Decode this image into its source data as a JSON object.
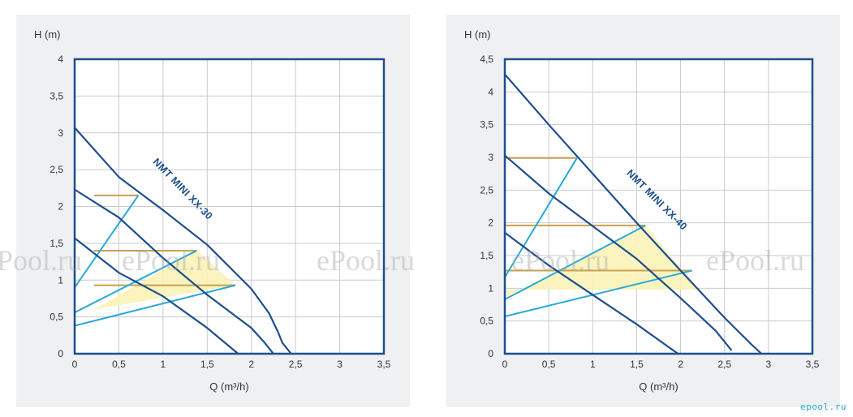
{
  "chart_data": [
    {
      "type": "line",
      "title": "",
      "xlabel": "Q (m³/h)",
      "ylabel": "H (m)",
      "xlim": [
        0,
        3.5
      ],
      "ylim": [
        0,
        4
      ],
      "xticks": [
        0,
        0.5,
        1,
        1.5,
        2,
        2.5,
        3,
        3.5
      ],
      "yticks": [
        0,
        0.5,
        1,
        1.5,
        2,
        2.5,
        3,
        3.5,
        4
      ],
      "xtick_labels": [
        "0",
        "0,5",
        "1",
        "1,5",
        "2",
        "2,5",
        "3",
        "3,5"
      ],
      "ytick_labels": [
        "0",
        "0,5",
        "1",
        "1,5",
        "2",
        "2,5",
        "3",
        "3,5",
        "4"
      ],
      "annotation": "NMT MINI XX-30",
      "colors": {
        "curve": "#1d4f8c",
        "system": "#29a9d8",
        "level": "#c9a050",
        "zone": "#fbf3b8",
        "frame": "#1d4f8c",
        "grid": "#c8cbcd"
      },
      "pump_curves": [
        {
          "x": [
            0,
            0.5,
            1,
            1.5,
            2,
            2.2,
            2.3,
            2.35,
            2.45
          ],
          "y": [
            3.07,
            2.4,
            1.95,
            1.48,
            0.88,
            0.55,
            0.3,
            0.15,
            0
          ]
        },
        {
          "x": [
            0,
            0.5,
            1,
            1.5,
            2,
            2.15,
            2.25
          ],
          "y": [
            2.23,
            1.85,
            1.3,
            0.8,
            0.35,
            0.15,
            0
          ]
        },
        {
          "x": [
            0,
            0.5,
            1,
            1.5,
            1.85
          ],
          "y": [
            1.57,
            1.1,
            0.78,
            0.35,
            0
          ]
        }
      ],
      "system_curves": [
        {
          "x": [
            0,
            0.72
          ],
          "y": [
            0.9,
            2.15
          ]
        },
        {
          "x": [
            0,
            1.38
          ],
          "y": [
            0.56,
            1.4
          ]
        },
        {
          "x": [
            0,
            1.82
          ],
          "y": [
            0.38,
            0.93
          ]
        }
      ],
      "level_lines": [
        {
          "x": [
            0.22,
            0.72
          ],
          "y": [
            2.15,
            2.15
          ]
        },
        {
          "x": [
            0.22,
            1.38
          ],
          "y": [
            1.4,
            1.4
          ]
        },
        {
          "x": [
            0.22,
            1.82
          ],
          "y": [
            0.93,
            0.93
          ]
        }
      ],
      "operating_zone": {
        "x": [
          0.22,
          1.38,
          1.82,
          0.22
        ],
        "y": [
          0.6,
          1.4,
          0.93,
          0.6
        ]
      }
    },
    {
      "type": "line",
      "title": "",
      "xlabel": "Q (m³/h)",
      "ylabel": "H (m)",
      "xlim": [
        0,
        3.5
      ],
      "ylim": [
        0,
        4.5
      ],
      "xticks": [
        0,
        0.5,
        1,
        1.5,
        2,
        2.5,
        3,
        3.5
      ],
      "yticks": [
        0,
        0.5,
        1,
        1.5,
        2,
        2.5,
        3,
        3.5,
        4,
        4.5
      ],
      "xtick_labels": [
        "0",
        "0,5",
        "1",
        "1,5",
        "2",
        "2,5",
        "3",
        "3,5"
      ],
      "ytick_labels": [
        "0",
        "0,5",
        "1",
        "1,5",
        "2",
        "2,5",
        "3",
        "3,5",
        "4",
        "4,5"
      ],
      "annotation": "NMT MINI XX-40",
      "colors": {
        "curve": "#1d4f8c",
        "system": "#29a9d8",
        "level": "#c9a050",
        "zone": "#fbf3b8",
        "frame": "#1d4f8c",
        "grid": "#c8cbcd"
      },
      "pump_curves": [
        {
          "x": [
            0,
            0.5,
            1,
            1.5,
            2,
            2.5,
            2.8,
            2.92
          ],
          "y": [
            4.27,
            3.5,
            2.75,
            2.0,
            1.27,
            0.55,
            0.15,
            0
          ]
        },
        {
          "x": [
            0,
            0.5,
            1,
            1.5,
            2,
            2.4,
            2.58
          ],
          "y": [
            3.03,
            2.45,
            1.95,
            1.45,
            0.85,
            0.35,
            0.05
          ]
        },
        {
          "x": [
            0,
            0.5,
            1,
            1.5,
            1.97
          ],
          "y": [
            1.85,
            1.35,
            0.9,
            0.45,
            0
          ]
        }
      ],
      "system_curves": [
        {
          "x": [
            0,
            0.82
          ],
          "y": [
            1.17,
            2.99
          ]
        },
        {
          "x": [
            0,
            1.6
          ],
          "y": [
            0.83,
            1.96
          ]
        },
        {
          "x": [
            0,
            2.13
          ],
          "y": [
            0.57,
            1.27
          ]
        }
      ],
      "level_lines": [
        {
          "x": [
            0,
            0.82
          ],
          "y": [
            2.99,
            2.99
          ]
        },
        {
          "x": [
            0,
            1.6
          ],
          "y": [
            1.96,
            1.96
          ]
        },
        {
          "x": [
            0,
            2.13
          ],
          "y": [
            1.27,
            1.27
          ]
        }
      ],
      "operating_zone": {
        "x": [
          0.02,
          1.6,
          2.2,
          0.02
        ],
        "y": [
          0.87,
          1.96,
          0.98,
          0.98
        ]
      }
    }
  ],
  "watermark": {
    "text": "ePool.ru"
  },
  "corner_logo": {
    "text": "epool.ru"
  }
}
